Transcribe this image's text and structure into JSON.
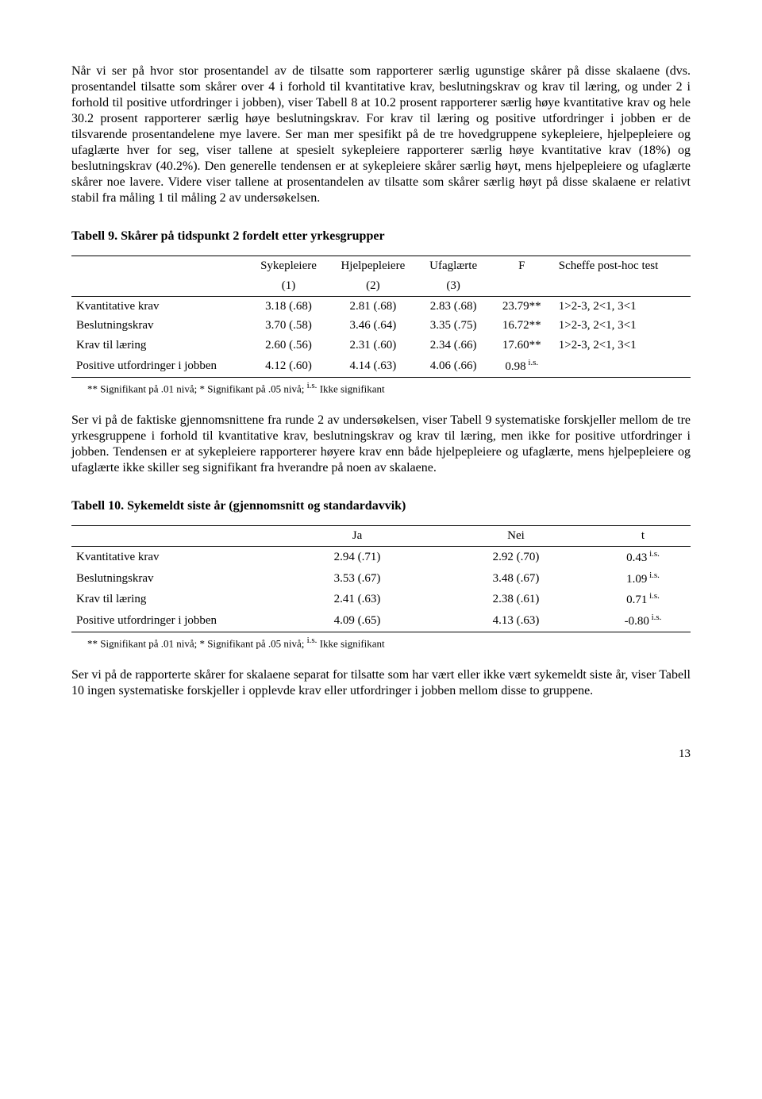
{
  "para1": "Når vi ser på hvor stor prosentandel av de tilsatte som rapporterer særlig ugunstige skårer på disse skalaene (dvs. prosentandel tilsatte som skårer over 4 i forhold til kvantitative krav, beslutningskrav og krav til læring, og under 2 i forhold til positive utfordringer i jobben), viser Tabell 8 at 10.2 prosent rapporterer særlig høye kvantitative krav og hele 30.2 prosent rapporterer særlig høye beslutningskrav. For krav til læring og positive utfordringer i jobben er de tilsvarende prosentandelene mye lavere. Ser man mer spesifikt på de tre hovedgruppene sykepleiere, hjelpepleiere og ufaglærte hver for seg, viser tallene at spesielt sykepleiere rapporterer særlig høye kvantitative krav (18%) og beslutningskrav (40.2%). Den generelle tendensen er at sykepleiere skårer særlig høyt, mens hjelpepleiere og ufaglærte skårer noe lavere. Videre viser tallene at prosentandelen av tilsatte som skårer særlig høyt på disse skalaene er relativt stabil fra måling 1 til måling 2 av undersøkelsen.",
  "table9": {
    "title": "Tabell 9. Skårer på tidspunkt 2 fordelt etter yrkesgrupper",
    "headers": {
      "c1a": "Sykepleiere",
      "c1b": "(1)",
      "c2a": "Hjelpepleiere",
      "c2b": "(2)",
      "c3a": "Ufaglærte",
      "c3b": "(3)",
      "c4": "F",
      "c5": "Scheffe post-hoc test"
    },
    "rows": [
      {
        "label": "Kvantitative krav",
        "c1": "3.18 (.68)",
        "c2": "2.81 (.68)",
        "c3": "2.83 (.68)",
        "f": "23.79**",
        "post": "1>2-3, 2<1, 3<1"
      },
      {
        "label": "Beslutningskrav",
        "c1": "3.70 (.58)",
        "c2": "3.46 (.64)",
        "c3": "3.35 (.75)",
        "f": "16.72**",
        "post": "1>2-3, 2<1, 3<1"
      },
      {
        "label": "Krav til læring",
        "c1": "2.60 (.56)",
        "c2": "2.31 (.60)",
        "c3": "2.34 (.66)",
        "f": "17.60**",
        "post": "1>2-3, 2<1, 3<1"
      },
      {
        "label": "Positive utfordringer i jobben",
        "c1": "4.12 (.60)",
        "c2": "4.14 (.63)",
        "c3": "4.06 (.66)",
        "f": "0.98",
        "fsup": "i.s.",
        "post": ""
      }
    ],
    "footnote_a": "** Signifikant på .01 nivå; * Signifikant på .05 nivå; ",
    "footnote_sup": "i.s.",
    "footnote_b": " Ikke signifikant"
  },
  "para2": "Ser vi på de faktiske gjennomsnittene fra runde 2 av undersøkelsen, viser Tabell 9 systematiske forskjeller mellom de tre yrkesgruppene i forhold til kvantitative krav, beslutningskrav og krav til læring, men ikke for positive utfordringer i jobben. Tendensen er at sykepleiere rapporterer høyere krav enn både hjelpepleiere og ufaglærte, mens hjelpepleiere og ufaglærte ikke skiller seg signifikant fra hverandre på noen av skalaene.",
  "table10": {
    "title": "Tabell 10. Sykemeldt siste år (gjennomsnitt og standardavvik)",
    "headers": {
      "c1": "Ja",
      "c2": "Nei",
      "c3": "t"
    },
    "rows": [
      {
        "label": "Kvantitative krav",
        "c1": "2.94 (.71)",
        "c2": "2.92 (.70)",
        "t": "0.43",
        "sup": "i.s."
      },
      {
        "label": "Beslutningskrav",
        "c1": "3.53 (.67)",
        "c2": "3.48 (.67)",
        "t": "1.09",
        "sup": "i.s."
      },
      {
        "label": "Krav til læring",
        "c1": "2.41 (.63)",
        "c2": "2.38 (.61)",
        "t": "0.71",
        "sup": "i.s."
      },
      {
        "label": "Positive utfordringer i jobben",
        "c1": "4.09 (.65)",
        "c2": "4.13 (.63)",
        "t": "-0.80",
        "sup": "i.s."
      }
    ],
    "footnote_a": "** Signifikant på .01 nivå; * Signifikant på .05 nivå; ",
    "footnote_sup": "i.s.",
    "footnote_b": " Ikke signifikant"
  },
  "para3": "Ser vi på de rapporterte skårer for skalaene separat for tilsatte som har vært eller ikke vært sykemeldt siste år, viser Tabell 10 ingen systematiske forskjeller i opplevde krav eller utfordringer i jobben mellom disse to gruppene.",
  "pageNumber": "13"
}
